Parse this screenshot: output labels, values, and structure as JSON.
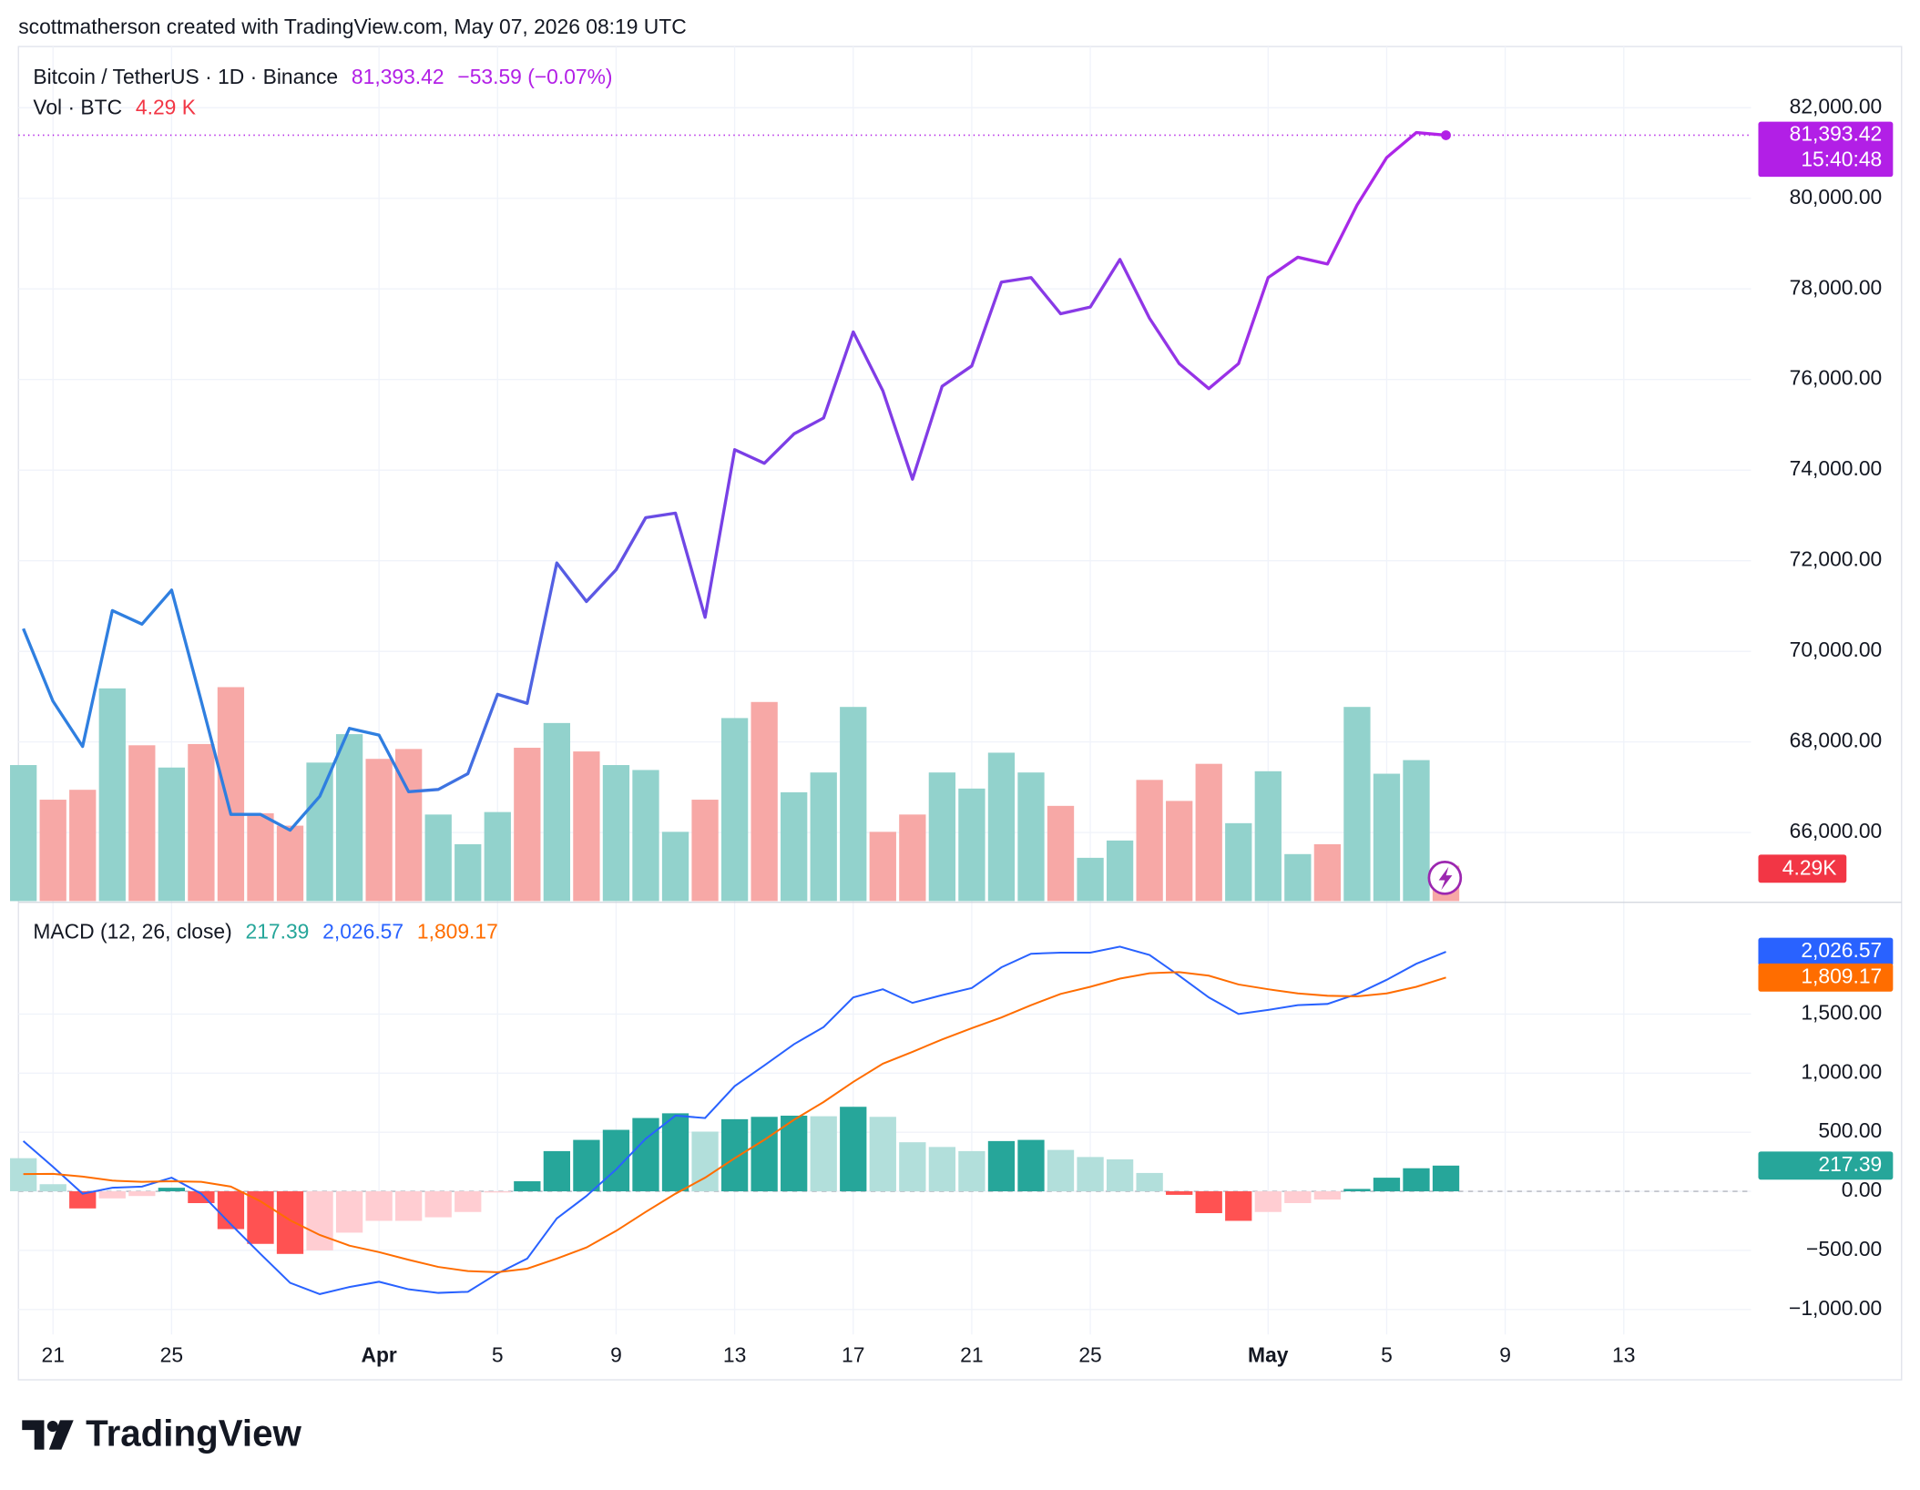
{
  "header": "scottmatherson created with TradingView.com, May 07, 2026 08:19 UTC",
  "logo": "TradingView",
  "chart_data": [
    {
      "type": "line",
      "x": [
        "2026-03-20",
        "2026-03-21",
        "2026-03-22",
        "2026-03-23",
        "2026-03-24",
        "2026-03-25",
        "2026-03-26",
        "2026-03-27",
        "2026-03-28",
        "2026-03-29",
        "2026-03-30",
        "2026-03-31",
        "2026-04-01",
        "2026-04-02",
        "2026-04-03",
        "2026-04-04",
        "2026-04-05",
        "2026-04-06",
        "2026-04-07",
        "2026-04-08",
        "2026-04-09",
        "2026-04-10",
        "2026-04-11",
        "2026-04-12",
        "2026-04-13",
        "2026-04-14",
        "2026-04-15",
        "2026-04-16",
        "2026-04-17",
        "2026-04-18",
        "2026-04-19",
        "2026-04-20",
        "2026-04-21",
        "2026-04-22",
        "2026-04-23",
        "2026-04-24",
        "2026-04-25",
        "2026-04-26",
        "2026-04-27",
        "2026-04-28",
        "2026-04-29",
        "2026-04-30",
        "2026-05-01",
        "2026-05-02",
        "2026-05-03",
        "2026-05-04",
        "2026-05-05",
        "2026-05-06",
        "2026-05-07"
      ],
      "xlim": [
        "2026-03-19T20:00Z",
        "2026-05-17T07:00Z"
      ],
      "xticks": [
        {
          "value": "2026-03-21",
          "label": "21"
        },
        {
          "value": "2026-03-25",
          "label": "25"
        },
        {
          "value": "2026-04-01",
          "label": "Apr"
        },
        {
          "value": "2026-04-05",
          "label": "5"
        },
        {
          "value": "2026-04-09",
          "label": "9"
        },
        {
          "value": "2026-04-13",
          "label": "13"
        },
        {
          "value": "2026-04-17",
          "label": "17"
        },
        {
          "value": "2026-04-21",
          "label": "21"
        },
        {
          "value": "2026-04-25",
          "label": "25"
        },
        {
          "value": "2026-05-01",
          "label": "May"
        },
        {
          "value": "2026-05-05",
          "label": "5"
        },
        {
          "value": "2026-05-09",
          "label": "9"
        },
        {
          "value": "2026-05-13",
          "label": "13"
        }
      ],
      "ylim": [
        64459,
        83351
      ],
      "yticks": [
        {
          "value": 66000,
          "label": "66,000.00"
        },
        {
          "value": 68000,
          "label": "68,000.00"
        },
        {
          "value": 70000,
          "label": "70,000.00"
        },
        {
          "value": 72000,
          "label": "72,000.00"
        },
        {
          "value": 74000,
          "label": "74,000.00"
        },
        {
          "value": 76000,
          "label": "76,000.00"
        },
        {
          "value": 78000,
          "label": "78,000.00"
        },
        {
          "value": 80000,
          "label": "80,000.00"
        },
        {
          "value": 82000,
          "label": "82,000.00"
        }
      ],
      "grid": true,
      "series": [
        {
          "name": "Bitcoin / TetherUS · 1D · Binance",
          "gradient": [
            "#2f7fe0",
            "#2f7fe0",
            "#7a3ee6",
            "#8a3ae6",
            "#b322e8"
          ],
          "tag_color": "#b21fe6",
          "values": [
            70500,
            68900,
            67900,
            70900,
            70600,
            71350,
            68900,
            66400,
            66400,
            66050,
            66800,
            68300,
            68150,
            66900,
            66950,
            67300,
            69050,
            68850,
            71950,
            71100,
            71800,
            72950,
            73050,
            70750,
            74450,
            74150,
            74800,
            75150,
            77050,
            75750,
            73800,
            75850,
            76300,
            78150,
            78250,
            77450,
            77600,
            78650,
            77350,
            76350,
            75800,
            76350,
            78250,
            78700,
            78550,
            79850,
            80900,
            81450,
            81393.42
          ],
          "last_label": "81,393.42",
          "change_label": "−53.59 (−0.07%)",
          "countdown": "15:40:48"
        }
      ],
      "volume": {
        "name": "Vol · BTC",
        "tag_color": "#f23645",
        "values": [
          16500,
          12300,
          13500,
          25800,
          18900,
          16200,
          19050,
          25950,
          10650,
          9150,
          16800,
          20250,
          17250,
          18450,
          10500,
          6900,
          10800,
          18600,
          21600,
          18150,
          16500,
          15900,
          8400,
          12300,
          22200,
          24150,
          13200,
          15600,
          23550,
          8400,
          10500,
          15600,
          13650,
          18000,
          15600,
          11550,
          5250,
          7350,
          14700,
          12150,
          16650,
          9450,
          15750,
          5700,
          6900,
          23550,
          15450,
          17100,
          4290
        ],
        "colors": [
          "#92d2cc",
          "#f7a8a6",
          "#f7a8a6",
          "#92d2cc",
          "#f7a8a6",
          "#92d2cc",
          "#f7a8a6",
          "#f7a8a6",
          "#f7a8a6",
          "#f7a8a6",
          "#92d2cc",
          "#92d2cc",
          "#f7a8a6",
          "#f7a8a6",
          "#92d2cc",
          "#92d2cc",
          "#92d2cc",
          "#f7a8a6",
          "#92d2cc",
          "#f7a8a6",
          "#92d2cc",
          "#92d2cc",
          "#92d2cc",
          "#f7a8a6",
          "#92d2cc",
          "#f7a8a6",
          "#92d2cc",
          "#92d2cc",
          "#92d2cc",
          "#f7a8a6",
          "#f7a8a6",
          "#92d2cc",
          "#92d2cc",
          "#92d2cc",
          "#92d2cc",
          "#f7a8a6",
          "#92d2cc",
          "#92d2cc",
          "#f7a8a6",
          "#f7a8a6",
          "#f7a8a6",
          "#92d2cc",
          "#92d2cc",
          "#92d2cc",
          "#f7a8a6",
          "#92d2cc",
          "#92d2cc",
          "#92d2cc",
          "#f7a8a6"
        ],
        "last_label": "4.29 K",
        "tag_label": "4.29K"
      }
    },
    {
      "type": "macd",
      "name": "MACD (12, 26, close)",
      "ylim": [
        -1212,
        2435
      ],
      "yticks": [
        {
          "value": -1000,
          "label": "−1,000.00"
        },
        {
          "value": -500,
          "label": "−500.00"
        },
        {
          "value": 0,
          "label": "0.00"
        },
        {
          "value": 500,
          "label": "500.00"
        },
        {
          "value": 1000,
          "label": "1,000.00"
        },
        {
          "value": 1500,
          "label": "1,500.00"
        }
      ],
      "grid": true,
      "histogram": {
        "tag_color": "#26a69a",
        "colors": {
          "rising_positive": "#26a69a",
          "falling_positive": "#b2dfdb",
          "falling_negative": "#ff5252",
          "rising_negative": "#ffcdd2"
        },
        "values": [
          280,
          60,
          -145,
          -60,
          -40,
          30,
          -100,
          -320,
          -445,
          -530,
          -500,
          -350,
          -250,
          -250,
          -220,
          -175,
          -10,
          85,
          340,
          435,
          520,
          620,
          660,
          505,
          610,
          630,
          640,
          635,
          715,
          630,
          415,
          375,
          340,
          425,
          435,
          350,
          290,
          270,
          155,
          -30,
          -185,
          -250,
          -175,
          -100,
          -70,
          20,
          115,
          195,
          217.39
        ],
        "last_label": "217.39"
      },
      "series": [
        {
          "color": "#2962ff",
          "last_label": "2,026.57",
          "values": [
            425,
            207,
            -20,
            30,
            40,
            115,
            -20,
            -280,
            -530,
            -775,
            -870,
            -810,
            -765,
            -830,
            -860,
            -850,
            -695,
            -570,
            -230,
            -40,
            185,
            445,
            640,
            620,
            890,
            1065,
            1245,
            1390,
            1640,
            1710,
            1595,
            1660,
            1720,
            1895,
            2010,
            2020,
            2020,
            2070,
            2000,
            1825,
            1640,
            1500,
            1535,
            1575,
            1585,
            1670,
            1790,
            1925,
            2026.57
          ]
        },
        {
          "color": "#ff6d00",
          "last_label": "1,809.17",
          "values": [
            145,
            147,
            125,
            90,
            80,
            85,
            80,
            40,
            -85,
            -245,
            -370,
            -460,
            -515,
            -580,
            -640,
            -675,
            -685,
            -655,
            -570,
            -475,
            -335,
            -175,
            -20,
            115,
            280,
            435,
            605,
            755,
            925,
            1080,
            1180,
            1285,
            1380,
            1470,
            1575,
            1670,
            1730,
            1800,
            1845,
            1855,
            1825,
            1750,
            1710,
            1675,
            1655,
            1650,
            1675,
            1730,
            1809.17
          ]
        }
      ]
    }
  ]
}
